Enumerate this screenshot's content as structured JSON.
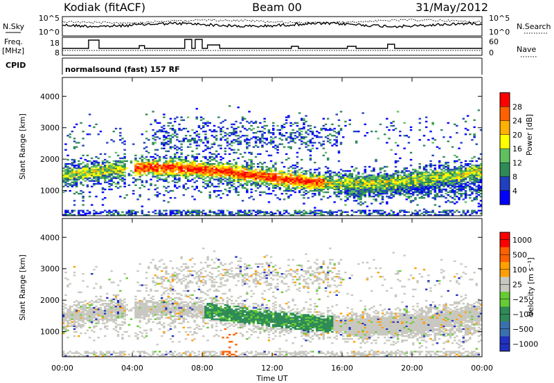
{
  "header": {
    "station": "Kodiak (fitACF)",
    "beam": "Beam 00",
    "date": "31/May/2012"
  },
  "summary": {
    "nsky_label": "N.Sky",
    "nsky_ticks": [
      "10^5",
      "10^0"
    ],
    "nsearch_label": "N.Search",
    "nsearch_ticks": [
      "10^5",
      "10^0"
    ],
    "freq_label_1": "Freq.",
    "freq_label_2": "[MHz]",
    "freq_ticks": [
      "18",
      "8"
    ],
    "nave_label": "Nave",
    "nave_ticks": [
      "60",
      "0"
    ],
    "cpid_label": "CPID",
    "cpid_text": "normalsound (fast) 157 RF"
  },
  "chart_data": [
    {
      "type": "heatmap",
      "panel": "power",
      "ylabel": "Slant Range [km]",
      "xlim_hours": [
        0,
        24
      ],
      "ylim_km": [
        200,
        4600
      ],
      "yticks": [
        "1000",
        "2000",
        "3000",
        "4000"
      ],
      "colorbar": {
        "label": "Power [dB]",
        "ticks": [
          "4",
          "8",
          "12",
          "16",
          "20",
          "24",
          "28"
        ],
        "colors": [
          "#0000ff",
          "#2040c0",
          "#2e8b57",
          "#60c060",
          "#ffff00",
          "#ffb000",
          "#ff6000",
          "#ff0000"
        ]
      }
    },
    {
      "type": "heatmap",
      "panel": "velocity",
      "ylabel": "Slant Range [km]",
      "xlim_hours": [
        0,
        24
      ],
      "ylim_km": [
        200,
        4600
      ],
      "yticks": [
        "1000",
        "2000",
        "3000",
        "4000"
      ],
      "colorbar": {
        "label": "Velocity [m s⁻¹]",
        "ticks": [
          "1000",
          "500",
          "100",
          "25",
          "−25",
          "−100",
          "−500",
          "−1000"
        ],
        "colors": [
          "#2030c0",
          "#3a70b0",
          "#2e8b57",
          "#66cc33",
          "#c8c8c0",
          "#ffa000",
          "#ff6000",
          "#ff0000"
        ]
      }
    }
  ],
  "xaxis": {
    "ticks": [
      "00:00",
      "04:00",
      "08:00",
      "12:00",
      "16:00",
      "20:00",
      "00:00"
    ],
    "label": "Time UT"
  }
}
